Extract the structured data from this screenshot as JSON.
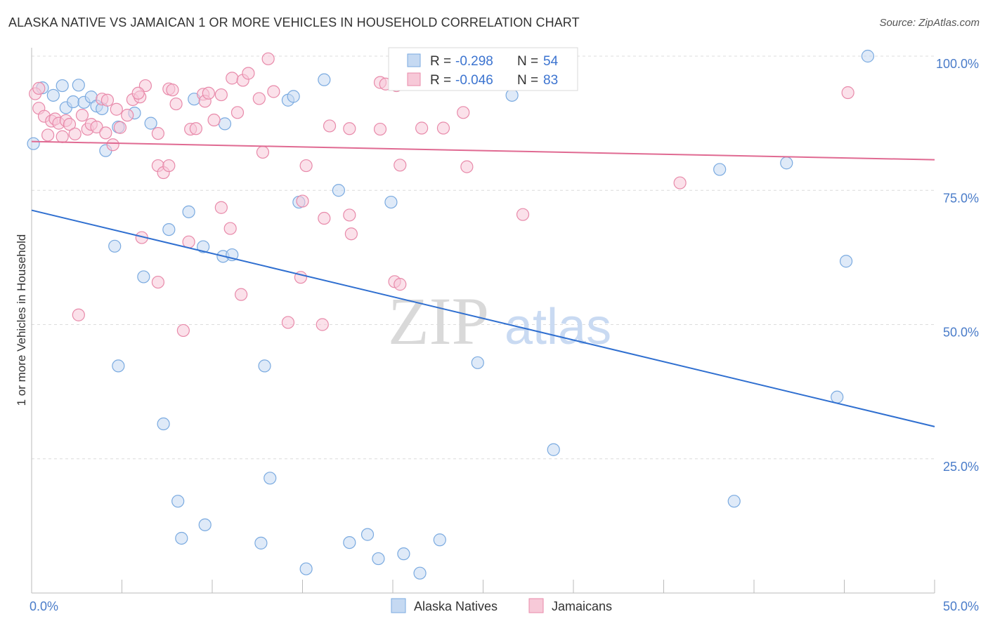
{
  "title": "ALASKA NATIVE VS JAMAICAN 1 OR MORE VEHICLES IN HOUSEHOLD CORRELATION CHART",
  "source": "Source: ZipAtlas.com",
  "watermark": {
    "zip": "ZIP",
    "atlas": "atlas"
  },
  "chart_data": {
    "type": "scatter",
    "title": "ALASKA NATIVE VS JAMAICAN 1 OR MORE VEHICLES IN HOUSEHOLD CORRELATION CHART",
    "xlabel": "",
    "ylabel": "1 or more Vehicles in Household",
    "xlim": [
      0,
      50
    ],
    "ylim": [
      0,
      100
    ],
    "x_tick_labels": [
      "0.0%",
      "50.0%"
    ],
    "y_ticks": [
      25,
      50,
      75,
      100
    ],
    "y_tick_labels": [
      "25.0%",
      "50.0%",
      "75.0%",
      "100.0%"
    ],
    "grid": "horizontal dashed",
    "legend_position": "top-center",
    "series": [
      {
        "name": "Alaska Natives",
        "color": "#7aaae0",
        "fill": "#c5d9f2",
        "R": "-0.298",
        "N": "54",
        "trend": {
          "x0": 0,
          "y0": 71.3,
          "x1": 50,
          "y1": 31.0,
          "color": "#2f6fd0"
        },
        "points": [
          [
            0.1,
            83.7
          ],
          [
            0.6,
            94.1
          ],
          [
            1.2,
            92.7
          ],
          [
            1.9,
            90.4
          ],
          [
            1.7,
            94.5
          ],
          [
            2.3,
            91.5
          ],
          [
            2.6,
            94.6
          ],
          [
            2.9,
            91.4
          ],
          [
            3.3,
            92.4
          ],
          [
            3.6,
            90.7
          ],
          [
            3.9,
            90.2
          ],
          [
            4.1,
            82.4
          ],
          [
            4.8,
            86.8
          ],
          [
            5.7,
            89.4
          ],
          [
            6.6,
            87.5
          ],
          [
            9.0,
            92.0
          ],
          [
            10.7,
            87.4
          ],
          [
            14.2,
            91.8
          ],
          [
            14.5,
            92.5
          ],
          [
            16.2,
            95.6
          ],
          [
            26.6,
            92.7
          ],
          [
            46.3,
            100.0
          ],
          [
            38.1,
            78.9
          ],
          [
            41.8,
            80.1
          ],
          [
            17.0,
            75.0
          ],
          [
            14.8,
            72.8
          ],
          [
            19.9,
            72.8
          ],
          [
            8.7,
            71.0
          ],
          [
            7.6,
            67.7
          ],
          [
            4.6,
            64.6
          ],
          [
            9.5,
            64.5
          ],
          [
            10.6,
            62.7
          ],
          [
            11.1,
            63.0
          ],
          [
            6.2,
            58.9
          ],
          [
            45.1,
            61.8
          ],
          [
            4.8,
            42.3
          ],
          [
            12.9,
            42.3
          ],
          [
            24.7,
            42.9
          ],
          [
            44.6,
            36.5
          ],
          [
            7.3,
            31.5
          ],
          [
            28.9,
            26.7
          ],
          [
            13.2,
            21.4
          ],
          [
            8.1,
            17.1
          ],
          [
            38.9,
            17.1
          ],
          [
            9.6,
            12.7
          ],
          [
            8.3,
            10.2
          ],
          [
            12.7,
            9.3
          ],
          [
            17.6,
            9.4
          ],
          [
            18.6,
            10.9
          ],
          [
            22.6,
            9.9
          ],
          [
            15.2,
            4.5
          ],
          [
            19.2,
            6.4
          ],
          [
            20.6,
            7.3
          ],
          [
            21.5,
            3.7
          ]
        ]
      },
      {
        "name": "Jamaicans",
        "color": "#e88aaa",
        "fill": "#f7c9d8",
        "R": "-0.046",
        "N": "83",
        "trend": {
          "x0": 0,
          "y0": 84.1,
          "x1": 50,
          "y1": 80.7,
          "color": "#e06a92"
        },
        "points": [
          [
            0.2,
            93.0
          ],
          [
            0.4,
            90.3
          ],
          [
            0.7,
            88.8
          ],
          [
            0.9,
            85.3
          ],
          [
            1.1,
            87.9
          ],
          [
            1.3,
            88.3
          ],
          [
            1.5,
            87.5
          ],
          [
            1.7,
            85.0
          ],
          [
            1.9,
            88.0
          ],
          [
            2.1,
            87.3
          ],
          [
            2.4,
            85.5
          ],
          [
            2.8,
            89.0
          ],
          [
            3.1,
            86.4
          ],
          [
            3.3,
            87.3
          ],
          [
            3.6,
            86.8
          ],
          [
            3.9,
            92.0
          ],
          [
            4.1,
            85.7
          ],
          [
            4.2,
            91.8
          ],
          [
            4.5,
            83.5
          ],
          [
            4.7,
            90.1
          ],
          [
            4.9,
            86.7
          ],
          [
            5.3,
            89.0
          ],
          [
            5.6,
            91.9
          ],
          [
            6.0,
            92.4
          ],
          [
            6.3,
            94.5
          ],
          [
            5.9,
            93.1
          ],
          [
            7.0,
            85.6
          ],
          [
            7.6,
            93.9
          ],
          [
            7.8,
            93.7
          ],
          [
            8.0,
            91.1
          ],
          [
            8.8,
            86.4
          ],
          [
            9.1,
            86.5
          ],
          [
            9.5,
            92.9
          ],
          [
            9.6,
            91.6
          ],
          [
            9.8,
            93.1
          ],
          [
            10.1,
            88.1
          ],
          [
            10.5,
            92.8
          ],
          [
            11.1,
            95.9
          ],
          [
            11.4,
            89.5
          ],
          [
            11.7,
            95.5
          ],
          [
            12.0,
            96.8
          ],
          [
            12.6,
            92.1
          ],
          [
            13.1,
            99.5
          ],
          [
            13.4,
            93.4
          ],
          [
            12.8,
            82.1
          ],
          [
            15.2,
            79.6
          ],
          [
            16.5,
            87.0
          ],
          [
            17.6,
            86.5
          ],
          [
            19.3,
            95.1
          ],
          [
            19.6,
            94.8
          ],
          [
            19.3,
            86.4
          ],
          [
            20.2,
            94.5
          ],
          [
            20.4,
            79.7
          ],
          [
            21.6,
            86.6
          ],
          [
            22.8,
            86.6
          ],
          [
            23.9,
            89.5
          ],
          [
            24.1,
            79.4
          ],
          [
            27.9,
            99.8
          ],
          [
            29.0,
            99.8
          ],
          [
            45.2,
            93.2
          ],
          [
            35.9,
            76.4
          ],
          [
            7.0,
            79.6
          ],
          [
            7.3,
            78.3
          ],
          [
            7.6,
            79.6
          ],
          [
            15.0,
            73.0
          ],
          [
            10.5,
            71.8
          ],
          [
            16.2,
            69.8
          ],
          [
            17.6,
            70.4
          ],
          [
            11.0,
            67.9
          ],
          [
            17.7,
            66.9
          ],
          [
            27.2,
            70.5
          ],
          [
            6.1,
            66.2
          ],
          [
            8.7,
            65.4
          ],
          [
            7.0,
            57.9
          ],
          [
            14.9,
            58.8
          ],
          [
            20.1,
            58.0
          ],
          [
            20.4,
            57.5
          ],
          [
            11.6,
            55.6
          ],
          [
            2.6,
            51.8
          ],
          [
            8.4,
            48.9
          ],
          [
            14.2,
            50.4
          ],
          [
            16.1,
            50.0
          ],
          [
            0.4,
            94.0
          ]
        ]
      }
    ]
  },
  "legend": {
    "r_label": "R =",
    "n_label": "N =",
    "rows": [
      {
        "r": "-0.298",
        "n": "54"
      },
      {
        "r": "-0.046",
        "n": "83"
      }
    ]
  },
  "bottom_legend": [
    "Alaska Natives",
    "Jamaicans"
  ]
}
